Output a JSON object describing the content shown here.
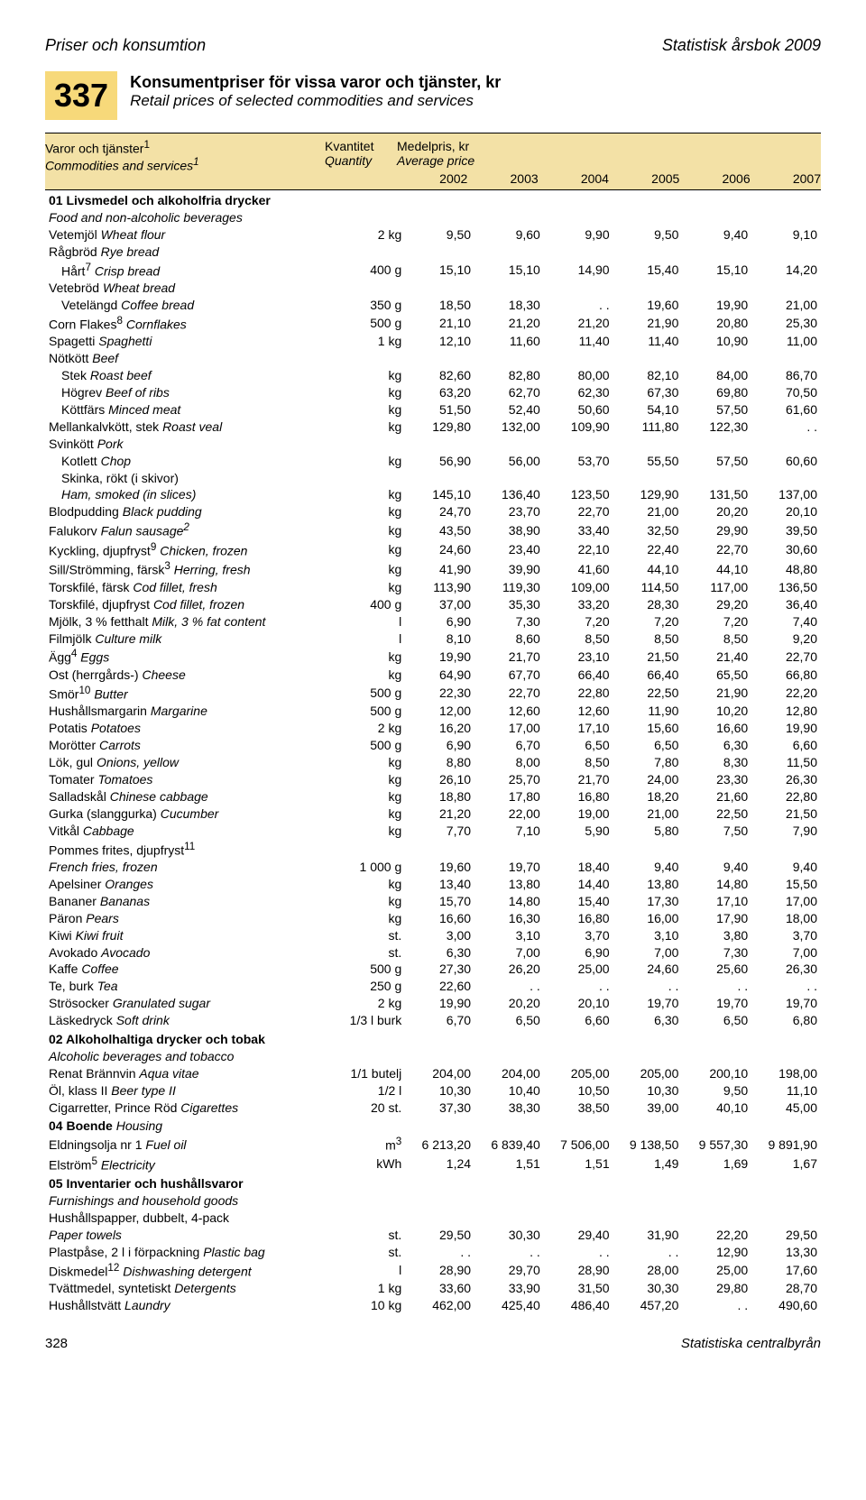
{
  "header": {
    "left": "Priser och konsumtion",
    "right": "Statistisk årsbok 2009"
  },
  "table_number": "337",
  "title_sv": "Konsumentpriser för vissa varor och tjänster, kr",
  "title_en": "Retail prices of selected commodities and services",
  "col_headers": {
    "col1_sv": "Varor och tjänster",
    "col1_sup": "1",
    "col1_en": "Commodities and services",
    "col1_en_sup": "1",
    "col2_sv": "Kvantitet",
    "col2_en": "Quantity",
    "col3_sv": "Medelpris, kr",
    "col3_en": "Average price"
  },
  "years": [
    "2002",
    "2003",
    "2004",
    "2005",
    "2006",
    "2007"
  ],
  "sections": [
    {
      "title_sv": "01 Livsmedel och alkoholfria drycker",
      "title_en": "Food and non-alcoholic beverages",
      "rows": [
        {
          "sv": "Vetemjöl",
          "en": "Wheat flour",
          "qty": "2 kg",
          "v": [
            "9,50",
            "9,60",
            "9,90",
            "9,50",
            "9,40",
            "9,10"
          ]
        },
        {
          "sv": "Rågbröd",
          "en": "Rye bread",
          "qty": "",
          "v": [
            "",
            "",
            "",
            "",
            "",
            ""
          ]
        },
        {
          "sv": "Hårt",
          "sup": "7",
          "en": "Crisp bread",
          "qty": "400 g",
          "v": [
            "15,10",
            "15,10",
            "14,90",
            "15,40",
            "15,10",
            "14,20"
          ],
          "indent": true
        },
        {
          "sv": "Vetebröd",
          "en": "Wheat bread",
          "qty": "",
          "v": [
            "",
            "",
            "",
            "",
            "",
            ""
          ]
        },
        {
          "sv": "Vetelängd",
          "en": "Coffee bread",
          "qty": "350 g",
          "v": [
            "18,50",
            "18,30",
            ". .",
            "19,60",
            "19,90",
            "21,00"
          ],
          "indent": true
        },
        {
          "sv": "Corn Flakes",
          "sup": "8",
          "en": "Cornflakes",
          "qty": "500 g",
          "v": [
            "21,10",
            "21,20",
            "21,20",
            "21,90",
            "20,80",
            "25,30"
          ]
        },
        {
          "sv": "Spagetti",
          "en": "Spaghetti",
          "qty": "1 kg",
          "v": [
            "12,10",
            "11,60",
            "11,40",
            "11,40",
            "10,90",
            "11,00"
          ]
        },
        {
          "sv": "Nötkött",
          "en": "Beef",
          "qty": "",
          "v": [
            "",
            "",
            "",
            "",
            "",
            ""
          ]
        },
        {
          "sv": "Stek",
          "en": "Roast beef",
          "qty": "kg",
          "v": [
            "82,60",
            "82,80",
            "80,00",
            "82,10",
            "84,00",
            "86,70"
          ],
          "indent": true
        },
        {
          "sv": "Högrev",
          "en": "Beef of ribs",
          "qty": "kg",
          "v": [
            "63,20",
            "62,70",
            "62,30",
            "67,30",
            "69,80",
            "70,50"
          ],
          "indent": true
        },
        {
          "sv": "Köttfärs",
          "en": "Minced meat",
          "qty": "kg",
          "v": [
            "51,50",
            "52,40",
            "50,60",
            "54,10",
            "57,50",
            "61,60"
          ],
          "indent": true
        },
        {
          "sv": "Mellankalvkött, stek",
          "en": "Roast veal",
          "qty": "kg",
          "v": [
            "129,80",
            "132,00",
            "109,90",
            "111,80",
            "122,30",
            ". ."
          ]
        },
        {
          "sv": "Svinkött",
          "en": "Pork",
          "qty": "",
          "v": [
            "",
            "",
            "",
            "",
            "",
            ""
          ]
        },
        {
          "sv": "Kotlett",
          "en": "Chop",
          "qty": "kg",
          "v": [
            "56,90",
            "56,00",
            "53,70",
            "55,50",
            "57,50",
            "60,60"
          ],
          "indent": true
        },
        {
          "sv": "Skinka, rökt (i skivor)",
          "en": "",
          "qty": "",
          "v": [
            "",
            "",
            "",
            "",
            "",
            ""
          ],
          "indent": true
        },
        {
          "sv": "Ham, smoked (in slices)",
          "en": "",
          "qty": "kg",
          "v": [
            "145,10",
            "136,40",
            "123,50",
            "129,90",
            "131,50",
            "137,00"
          ],
          "indent": true,
          "allitalic": true
        },
        {
          "sv": "Blodpudding",
          "en": "Black pudding",
          "qty": "kg",
          "v": [
            "24,70",
            "23,70",
            "22,70",
            "21,00",
            "20,20",
            "20,10"
          ]
        },
        {
          "sv": "Falukorv",
          "en": "Falun sausage",
          "en_sup": "2",
          "qty": "kg",
          "v": [
            "43,50",
            "38,90",
            "33,40",
            "32,50",
            "29,90",
            "39,50"
          ]
        },
        {
          "sv": "Kyckling, djupfryst",
          "sup": "9",
          "en": "Chicken, frozen",
          "qty": "kg",
          "v": [
            "24,60",
            "23,40",
            "22,10",
            "22,40",
            "22,70",
            "30,60"
          ]
        },
        {
          "sv": "Sill/Strömming, färsk",
          "sup": "3",
          "en": "Herring, fresh",
          "qty": "kg",
          "v": [
            "41,90",
            "39,90",
            "41,60",
            "44,10",
            "44,10",
            "48,80"
          ]
        },
        {
          "sv": "Torskfilé, färsk",
          "en": "Cod fillet, fresh",
          "qty": "kg",
          "v": [
            "113,90",
            "119,30",
            "109,00",
            "114,50",
            "117,00",
            "136,50"
          ]
        },
        {
          "sv": "Torskfilé, djupfryst",
          "en": "Cod fillet, frozen",
          "qty": "400 g",
          "v": [
            "37,00",
            "35,30",
            "33,20",
            "28,30",
            "29,20",
            "36,40"
          ]
        },
        {
          "sv": "Mjölk, 3 % fetthalt",
          "en": "Milk, 3 % fat content",
          "qty": "l",
          "v": [
            "6,90",
            "7,30",
            "7,20",
            "7,20",
            "7,20",
            "7,40"
          ]
        },
        {
          "sv": "Filmjölk",
          "en": "Culture milk",
          "qty": "l",
          "v": [
            "8,10",
            "8,60",
            "8,50",
            "8,50",
            "8,50",
            "9,20"
          ]
        },
        {
          "sv": "Ägg",
          "sup": "4",
          "en": "Eggs",
          "qty": "kg",
          "v": [
            "19,90",
            "21,70",
            "23,10",
            "21,50",
            "21,40",
            "22,70"
          ]
        },
        {
          "sv": "Ost (herrgårds-)",
          "en": "Cheese",
          "qty": "kg",
          "v": [
            "64,90",
            "67,70",
            "66,40",
            "66,40",
            "65,50",
            "66,80"
          ]
        },
        {
          "sv": "Smör",
          "sup": "10",
          "en": "Butter",
          "qty": "500 g",
          "v": [
            "22,30",
            "22,70",
            "22,80",
            "22,50",
            "21,90",
            "22,20"
          ]
        },
        {
          "sv": "Hushållsmargarin",
          "en": "Margarine",
          "qty": "500 g",
          "v": [
            "12,00",
            "12,60",
            "12,60",
            "11,90",
            "10,20",
            "12,80"
          ]
        },
        {
          "sv": "Potatis",
          "en": "Potatoes",
          "qty": "2 kg",
          "v": [
            "16,20",
            "17,00",
            "17,10",
            "15,60",
            "16,60",
            "19,90"
          ]
        },
        {
          "sv": "Morötter",
          "en": "Carrots",
          "qty": "500 g",
          "v": [
            "6,90",
            "6,70",
            "6,50",
            "6,50",
            "6,30",
            "6,60"
          ]
        },
        {
          "sv": "Lök, gul",
          "en": "Onions, yellow",
          "qty": "kg",
          "v": [
            "8,80",
            "8,00",
            "8,50",
            "7,80",
            "8,30",
            "11,50"
          ]
        },
        {
          "sv": "Tomater",
          "en": "Tomatoes",
          "qty": "kg",
          "v": [
            "26,10",
            "25,70",
            "21,70",
            "24,00",
            "23,30",
            "26,30"
          ]
        },
        {
          "sv": "Salladskål",
          "en": "Chinese cabbage",
          "qty": "kg",
          "v": [
            "18,80",
            "17,80",
            "16,80",
            "18,20",
            "21,60",
            "22,80"
          ]
        },
        {
          "sv": "Gurka (slanggurka)",
          "en": "Cucumber",
          "qty": "kg",
          "v": [
            "21,20",
            "22,00",
            "19,00",
            "21,00",
            "22,50",
            "21,50"
          ]
        },
        {
          "sv": "Vitkål",
          "en": "Cabbage",
          "qty": "kg",
          "v": [
            "7,70",
            "7,10",
            "5,90",
            "5,80",
            "7,50",
            "7,90"
          ]
        },
        {
          "sv": "Pommes frites, djupfryst",
          "sup": "11",
          "en": "",
          "qty": "",
          "v": [
            "",
            "",
            "",
            "",
            "",
            ""
          ]
        },
        {
          "sv": "French fries, frozen",
          "en": "",
          "qty": "1 000 g",
          "v": [
            "19,60",
            "19,70",
            "18,40",
            "9,40",
            "9,40",
            "9,40"
          ],
          "allitalic": true
        },
        {
          "sv": "Apelsiner",
          "en": "Oranges",
          "qty": "kg",
          "v": [
            "13,40",
            "13,80",
            "14,40",
            "13,80",
            "14,80",
            "15,50"
          ]
        },
        {
          "sv": "Bananer",
          "en": "Bananas",
          "qty": "kg",
          "v": [
            "15,70",
            "14,80",
            "15,40",
            "17,30",
            "17,10",
            "17,00"
          ]
        },
        {
          "sv": "Päron",
          "en": "Pears",
          "qty": "kg",
          "v": [
            "16,60",
            "16,30",
            "16,80",
            "16,00",
            "17,90",
            "18,00"
          ]
        },
        {
          "sv": "Kiwi",
          "en": "Kiwi fruit",
          "qty": "st.",
          "v": [
            "3,00",
            "3,10",
            "3,70",
            "3,10",
            "3,80",
            "3,70"
          ]
        },
        {
          "sv": "Avokado",
          "en": "Avocado",
          "qty": "st.",
          "v": [
            "6,30",
            "7,00",
            "6,90",
            "7,00",
            "7,30",
            "7,00"
          ]
        },
        {
          "sv": "Kaffe",
          "en": "Coffee",
          "qty": "500 g",
          "v": [
            "27,30",
            "26,20",
            "25,00",
            "24,60",
            "25,60",
            "26,30"
          ]
        },
        {
          "sv": "Te, burk",
          "en": "Tea",
          "qty": "250 g",
          "v": [
            "22,60",
            ". .",
            ". .",
            ". .",
            ". .",
            ". ."
          ]
        },
        {
          "sv": "Strösocker",
          "en": "Granulated sugar",
          "qty": "2 kg",
          "v": [
            "19,90",
            "20,20",
            "20,10",
            "19,70",
            "19,70",
            "19,70"
          ]
        },
        {
          "sv": "Läskedryck",
          "en": "Soft drink",
          "qty": "1/3 l burk",
          "v": [
            "6,70",
            "6,50",
            "6,60",
            "6,30",
            "6,50",
            "6,80"
          ]
        }
      ]
    },
    {
      "title_sv": "02 Alkoholhaltiga drycker och tobak",
      "title_en": "Alcoholic beverages and tobacco",
      "rows": [
        {
          "sv": "Renat Brännvin",
          "en": "Aqua vitae",
          "qty": "1/1 butelj",
          "v": [
            "204,00",
            "204,00",
            "205,00",
            "205,00",
            "200,10",
            "198,00"
          ]
        },
        {
          "sv": "Öl, klass II",
          "en": "Beer type II",
          "qty": "1/2 l",
          "v": [
            "10,30",
            "10,40",
            "10,50",
            "10,30",
            "9,50",
            "11,10"
          ]
        },
        {
          "sv": "Cigarretter, Prince Röd",
          "en": "Cigarettes",
          "qty": "20 st.",
          "v": [
            "37,30",
            "38,30",
            "38,50",
            "39,00",
            "40,10",
            "45,00"
          ]
        }
      ]
    },
    {
      "title_sv": "04 Boende",
      "title_en_inline": "Housing",
      "rows": [
        {
          "sv": "Eldningsolja nr 1",
          "en": "Fuel oil",
          "qty": "m",
          "qty_sup": "3",
          "v": [
            "6 213,20",
            "6 839,40",
            "7 506,00",
            "9 138,50",
            "9 557,30",
            "9 891,90"
          ]
        },
        {
          "sv": "Elström",
          "sup": "5",
          "en": "Electricity",
          "qty": "kWh",
          "v": [
            "1,24",
            "1,51",
            "1,51",
            "1,49",
            "1,69",
            "1,67"
          ]
        }
      ]
    },
    {
      "title_sv": "05 Inventarier och hushållsvaror",
      "title_en": "Furnishings and household goods",
      "rows": [
        {
          "sv": "Hushållspapper, dubbelt, 4-pack",
          "en": "",
          "qty": "",
          "v": [
            "",
            "",
            "",
            "",
            "",
            ""
          ]
        },
        {
          "sv": "Paper towels",
          "en": "",
          "qty": "st.",
          "v": [
            "29,50",
            "30,30",
            "29,40",
            "31,90",
            "22,20",
            "29,50"
          ],
          "allitalic": true
        },
        {
          "sv": "Plastpåse, 2 l i förpackning",
          "en": "Plastic bag",
          "qty": "st.",
          "v": [
            ". .",
            ". .",
            ". .",
            ". .",
            "12,90",
            "13,30"
          ]
        },
        {
          "sv": "Diskmedel",
          "sup": "12",
          "en": "Dishwashing detergent",
          "qty": "l",
          "v": [
            "28,90",
            "29,70",
            "28,90",
            "28,00",
            "25,00",
            "17,60"
          ]
        },
        {
          "sv": "Tvättmedel, syntetiskt",
          "en": "Detergents",
          "qty": "1 kg",
          "v": [
            "33,60",
            "33,90",
            "31,50",
            "30,30",
            "29,80",
            "28,70"
          ]
        },
        {
          "sv": "Hushållstvätt",
          "en": "Laundry",
          "qty": "10 kg",
          "v": [
            "462,00",
            "425,40",
            "486,40",
            "457,20",
            ". .",
            "490,60"
          ]
        }
      ]
    }
  ],
  "footer": {
    "page": "328",
    "source": "Statistiska centralbyrån"
  },
  "colors": {
    "highlight": "#f7d97a",
    "header_bg": "#f3e1a6"
  }
}
